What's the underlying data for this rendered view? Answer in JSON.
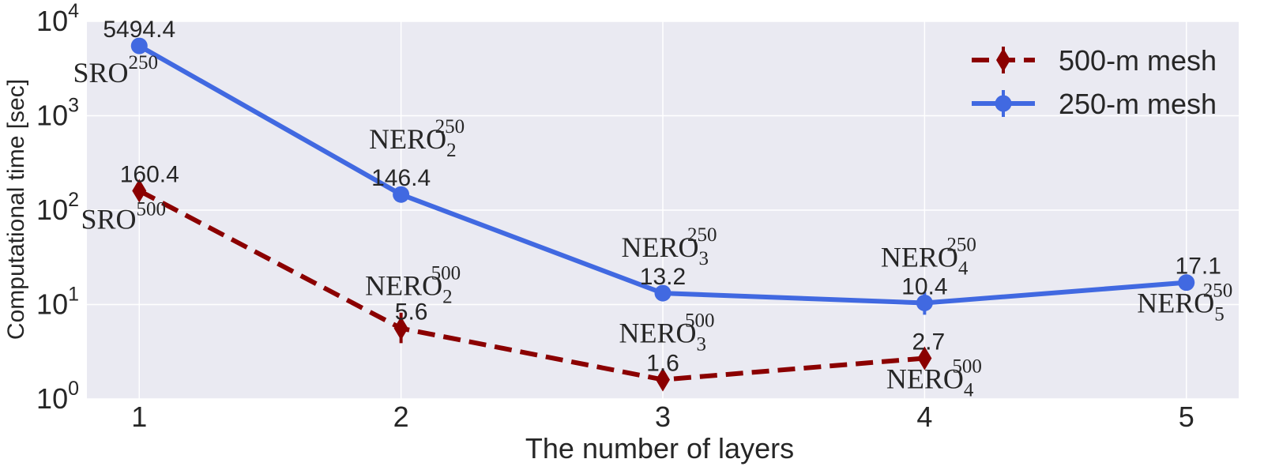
{
  "chart_data": {
    "type": "line",
    "xlabel": "The number of layers",
    "ylabel": "Computational time [sec]",
    "yscale": "log",
    "xlim": [
      0.8,
      5.2
    ],
    "ylim": [
      1,
      10000
    ],
    "x_ticks": [
      1,
      2,
      3,
      4,
      5
    ],
    "y_ticks": [
      {
        "value": 1,
        "base": "10",
        "exponent": "0"
      },
      {
        "value": 10,
        "base": "10",
        "exponent": "1"
      },
      {
        "value": 100,
        "base": "10",
        "exponent": "2"
      },
      {
        "value": 1000,
        "base": "10",
        "exponent": "3"
      },
      {
        "value": 10000,
        "base": "10",
        "exponent": "4"
      }
    ],
    "grid": true,
    "legend": "top-right",
    "series": [
      {
        "name": "500-m mesh",
        "color": "#8b0000",
        "line_style": "dashed",
        "marker": "diamond",
        "points": [
          {
            "x": 1,
            "y": 160.4,
            "label": "160.4",
            "err_low": 130,
            "err_high": 195,
            "tag": {
              "base": "SRO",
              "sup": "500",
              "sub": ""
            }
          },
          {
            "x": 2,
            "y": 5.6,
            "label": "5.6",
            "err_low": 3.9,
            "err_high": 8.2,
            "tag": {
              "base": "NERO",
              "sup": "500",
              "sub": "2"
            }
          },
          {
            "x": 3,
            "y": 1.6,
            "label": "1.6",
            "err_low": 1.4,
            "err_high": 1.85,
            "tag": {
              "base": "NERO",
              "sup": "500",
              "sub": "3"
            }
          },
          {
            "x": 4,
            "y": 2.7,
            "label": "2.7",
            "err_low": 2.3,
            "err_high": 3.2,
            "tag": {
              "base": "NERO",
              "sup": "500",
              "sub": "4"
            }
          }
        ]
      },
      {
        "name": "250-m mesh",
        "color": "#4169e1",
        "line_style": "solid",
        "marker": "circle",
        "points": [
          {
            "x": 1,
            "y": 5494.4,
            "label": "5494.4",
            "err_low": 5200,
            "err_high": 5800,
            "tag": {
              "base": "SRO",
              "sup": "250",
              "sub": ""
            }
          },
          {
            "x": 2,
            "y": 146.4,
            "label": "146.4",
            "err_low": 138,
            "err_high": 155,
            "tag": {
              "base": "NERO",
              "sup": "250",
              "sub": "2"
            }
          },
          {
            "x": 3,
            "y": 13.2,
            "label": "13.2",
            "err_low": 12.6,
            "err_high": 13.9,
            "tag": {
              "base": "NERO",
              "sup": "250",
              "sub": "3"
            }
          },
          {
            "x": 4,
            "y": 10.4,
            "label": "10.4",
            "err_low": 7.8,
            "err_high": 13.5,
            "tag": {
              "base": "NERO",
              "sup": "250",
              "sub": "4"
            }
          },
          {
            "x": 5,
            "y": 17.1,
            "label": "17.1",
            "err_low": 16.3,
            "err_high": 17.9,
            "tag": {
              "base": "NERO",
              "sup": "250",
              "sub": "5"
            }
          }
        ]
      }
    ]
  }
}
